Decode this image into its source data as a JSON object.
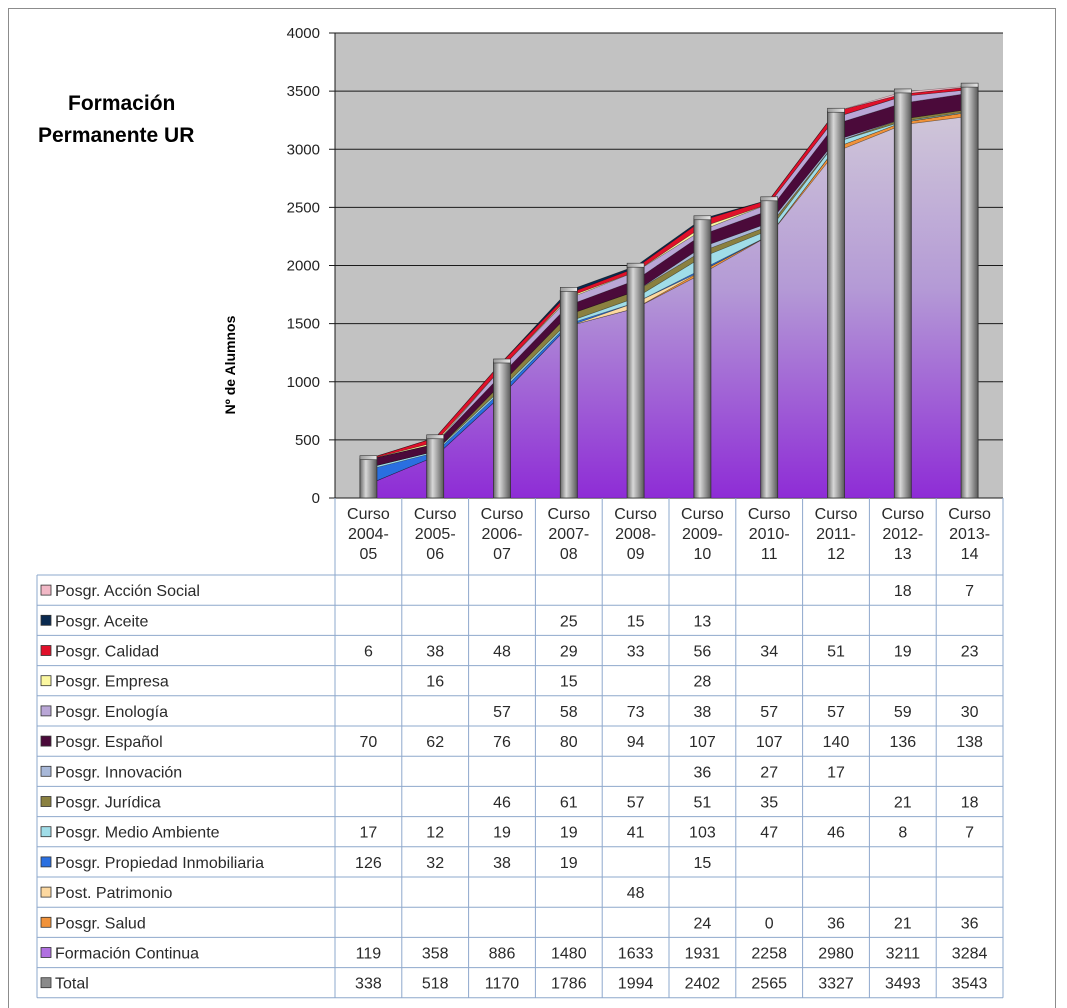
{
  "chart_data": {
    "type": "area",
    "title_lines": [
      "Formación",
      "Permanente UR"
    ],
    "ylabel": "Nº de Alumnos",
    "ylim": [
      0,
      4000
    ],
    "yticks": [
      "0",
      "500",
      "1000",
      "1500",
      "2000",
      "2500",
      "3000",
      "3500",
      "4000"
    ],
    "grid": true,
    "legend": "table",
    "categories": [
      [
        "Curso",
        "2004-",
        "05"
      ],
      [
        "Curso",
        "2005-",
        "06"
      ],
      [
        "Curso",
        "2006-",
        "07"
      ],
      [
        "Curso",
        "2007-",
        "08"
      ],
      [
        "Curso",
        "2008-",
        "09"
      ],
      [
        "Curso",
        "2009-",
        "10"
      ],
      [
        "Curso",
        "2010-",
        "11"
      ],
      [
        "Curso",
        "2011-",
        "12"
      ],
      [
        "Curso",
        "2012-",
        "13"
      ],
      [
        "Curso",
        "2013-",
        "14"
      ]
    ],
    "series": [
      {
        "name": "Posgr. Acción Social",
        "color": "#f2b8c6",
        "cells": [
          "",
          "",
          "",
          "",
          "",
          "",
          "",
          "",
          "18",
          "7"
        ]
      },
      {
        "name": "Posgr. Aceite",
        "color": "#0a2a50",
        "cells": [
          "",
          "",
          "",
          "25",
          "15",
          "13",
          "",
          "",
          "",
          ""
        ]
      },
      {
        "name": "Posgr. Calidad",
        "color": "#e0102a",
        "cells": [
          "6",
          "38",
          "48",
          "29",
          "33",
          "56",
          "34",
          "51",
          "19",
          "23"
        ]
      },
      {
        "name": "Posgr. Empresa",
        "color": "#fbf7a0",
        "cells": [
          "",
          "16",
          "",
          "15",
          "",
          "28",
          "",
          "",
          "",
          ""
        ]
      },
      {
        "name": "Posgr. Enología",
        "color": "#b9a6d6",
        "cells": [
          "",
          "",
          "57",
          "58",
          "73",
          "38",
          "57",
          "57",
          "59",
          "30"
        ]
      },
      {
        "name": "Posgr. Español",
        "color": "#4b0a3a",
        "cells": [
          "70",
          "62",
          "76",
          "80",
          "94",
          "107",
          "107",
          "140",
          "136",
          "138"
        ]
      },
      {
        "name": "Posgr. Innovación",
        "color": "#a8b8d8",
        "cells": [
          "",
          "",
          "",
          "",
          "",
          "36",
          "27",
          "17",
          "",
          ""
        ]
      },
      {
        "name": "Posgr. Jurídica",
        "color": "#8a8040",
        "cells": [
          "",
          "",
          "46",
          "61",
          "57",
          "51",
          "35",
          "",
          "21",
          "18"
        ]
      },
      {
        "name": "Posgr. Medio Ambiente",
        "color": "#a0dde8",
        "cells": [
          "17",
          "12",
          "19",
          "19",
          "41",
          "103",
          "47",
          "46",
          "8",
          "7"
        ]
      },
      {
        "name": "Posgr. Propiedad Inmobiliaria",
        "color": "#2a6fe0",
        "cells": [
          "126",
          "32",
          "38",
          "19",
          "",
          "15",
          "",
          "",
          "",
          ""
        ]
      },
      {
        "name": "Post. Patrimonio",
        "color": "#fcd8a0",
        "cells": [
          "",
          "",
          "",
          "",
          "48",
          "",
          "",
          "",
          "",
          ""
        ]
      },
      {
        "name": "Posgr. Salud",
        "color": "#f0923a",
        "cells": [
          "",
          "",
          "",
          "",
          "",
          "24",
          "0",
          "36",
          "21",
          "36"
        ]
      },
      {
        "name": "Formación Continua",
        "color": "#b070e0",
        "cells": [
          "119",
          "358",
          "886",
          "1480",
          "1633",
          "1931",
          "2258",
          "2980",
          "3211",
          "3284"
        ]
      },
      {
        "name": "Total",
        "color": "#8a8a8a",
        "cells": [
          "338",
          "518",
          "1170",
          "1786",
          "1994",
          "2402",
          "2565",
          "3327",
          "3493",
          "3543"
        ]
      }
    ]
  }
}
